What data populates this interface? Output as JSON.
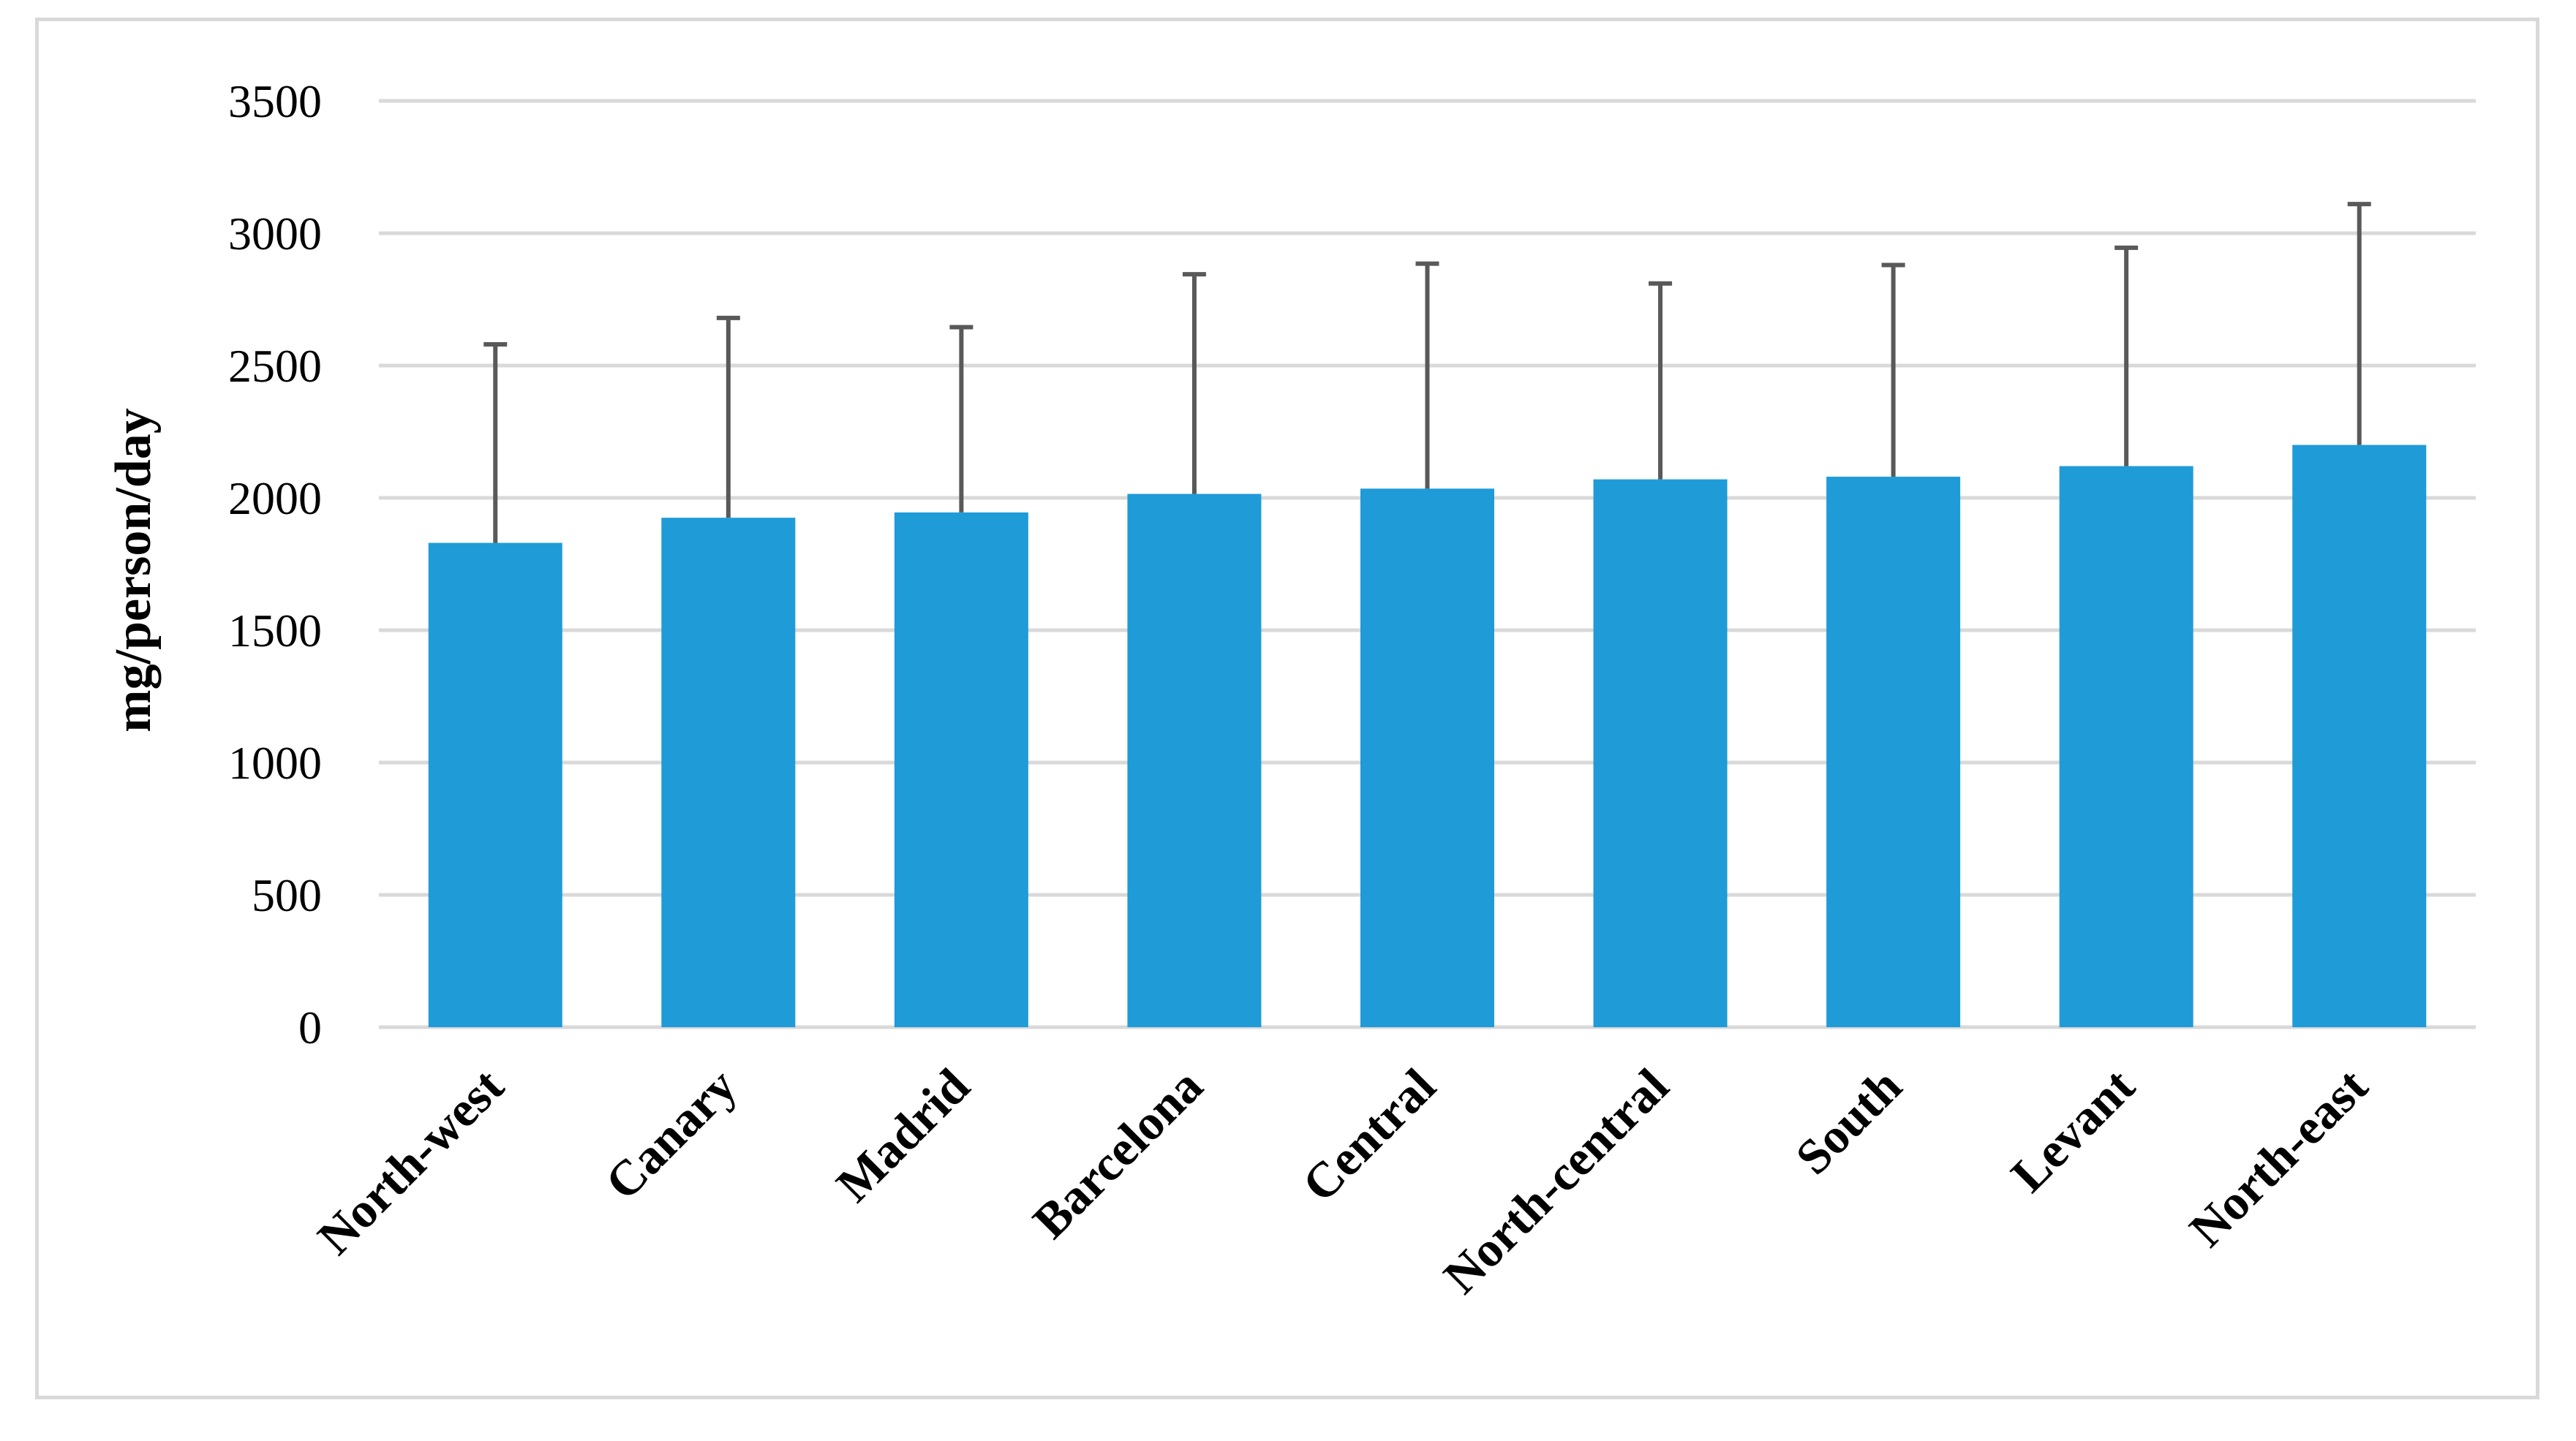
{
  "chart_data": {
    "type": "bar",
    "title": "",
    "xlabel": "",
    "ylabel": "mg/person/day",
    "categories": [
      "North-west",
      "Canary",
      "Madrid",
      "Barcelona",
      "Central",
      "North-central",
      "South",
      "Levant",
      "North-east"
    ],
    "values": [
      1830,
      1925,
      1945,
      2015,
      2035,
      2070,
      2080,
      2120,
      2200
    ],
    "error_upper": [
      2580,
      2680,
      2645,
      2845,
      2885,
      2810,
      2880,
      2945,
      3110
    ],
    "ylim": [
      0,
      3500
    ],
    "yticks": [
      0,
      500,
      1000,
      1500,
      2000,
      2500,
      3000,
      3500
    ],
    "grid": true,
    "legend": "none",
    "colors": {
      "bar": "#1f9bd8",
      "grid": "#d9d9d9",
      "error_bar": "#595959",
      "frame": "#d9d9d9"
    }
  }
}
